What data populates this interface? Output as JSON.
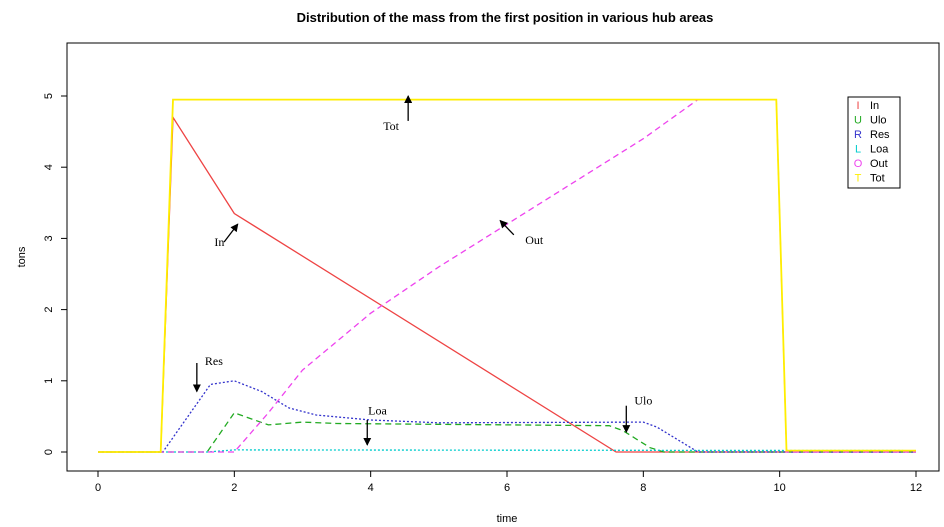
{
  "chart_data": {
    "type": "line",
    "title": "Distribution of the mass from the first position in various hub areas",
    "xlabel": "time",
    "ylabel": "tons",
    "xlim": [
      0,
      12
    ],
    "ylim": [
      0,
      5
    ],
    "x_ticks": [
      0,
      2,
      4,
      6,
      8,
      10,
      12
    ],
    "y_ticks": [
      0,
      1,
      2,
      3,
      4,
      5
    ],
    "grid": false,
    "legend": {
      "placement": "top-right"
    },
    "series": [
      {
        "name": "In",
        "symbol": "I",
        "color": "#ee4444",
        "dash": "solid",
        "points": [
          [
            0,
            0
          ],
          [
            0.92,
            0
          ],
          [
            1.1,
            4.7
          ],
          [
            2.0,
            3.35
          ],
          [
            7.6,
            0
          ],
          [
            12,
            0
          ]
        ]
      },
      {
        "name": "Ulo",
        "symbol": "U",
        "color": "#22aa22",
        "dash": "dashed",
        "points": [
          [
            0,
            0
          ],
          [
            1.6,
            0
          ],
          [
            2.0,
            0.55
          ],
          [
            2.5,
            0.38
          ],
          [
            3.0,
            0.42
          ],
          [
            3.5,
            0.4
          ],
          [
            7.5,
            0.37
          ],
          [
            7.7,
            0.3
          ],
          [
            8.1,
            0.06
          ],
          [
            8.3,
            0
          ],
          [
            12,
            0
          ]
        ]
      },
      {
        "name": "Res",
        "symbol": "R",
        "color": "#3333cc",
        "dash": "dotted",
        "points": [
          [
            0,
            0
          ],
          [
            0.95,
            0
          ],
          [
            1.65,
            0.95
          ],
          [
            2.0,
            1.0
          ],
          [
            2.4,
            0.85
          ],
          [
            2.8,
            0.62
          ],
          [
            3.2,
            0.52
          ],
          [
            4.0,
            0.45
          ],
          [
            5.0,
            0.41
          ],
          [
            8.0,
            0.42
          ],
          [
            8.2,
            0.35
          ],
          [
            8.8,
            0
          ],
          [
            12,
            0
          ]
        ]
      },
      {
        "name": "Loa",
        "symbol": "L",
        "color": "#00cccc",
        "dash": "dotted",
        "points": [
          [
            0,
            0
          ],
          [
            1.6,
            0
          ],
          [
            2.0,
            0.03
          ],
          [
            12,
            0.02
          ]
        ]
      },
      {
        "name": "Out",
        "symbol": "O",
        "color": "#ee44ee",
        "dash": "dashed",
        "points": [
          [
            0,
            0
          ],
          [
            2.0,
            0
          ],
          [
            2.5,
            0.55
          ],
          [
            3.0,
            1.15
          ],
          [
            4.0,
            1.95
          ],
          [
            5.0,
            2.6
          ],
          [
            6.0,
            3.2
          ],
          [
            7.0,
            3.8
          ],
          [
            8.0,
            4.4
          ],
          [
            8.8,
            4.95
          ],
          [
            9.95,
            4.95
          ],
          [
            10.1,
            0
          ],
          [
            12,
            0
          ]
        ]
      },
      {
        "name": "Tot",
        "symbol": "T",
        "color": "#ffee00",
        "dash": "solid",
        "points": [
          [
            0,
            0
          ],
          [
            0.92,
            0
          ],
          [
            1.1,
            4.95
          ],
          [
            9.95,
            4.95
          ],
          [
            10.1,
            0.02
          ],
          [
            12,
            0.02
          ]
        ]
      }
    ],
    "annotations": [
      {
        "label": "Tot",
        "arrow_from": [
          4.55,
          4.65
        ],
        "arrow_to": [
          4.55,
          5.0
        ],
        "label_at": [
          4.3,
          4.58
        ]
      },
      {
        "label": "In",
        "arrow_from": [
          1.85,
          2.95
        ],
        "arrow_to": [
          2.05,
          3.2
        ],
        "label_at": [
          1.78,
          2.95
        ]
      },
      {
        "label": "Out",
        "arrow_from": [
          6.1,
          3.05
        ],
        "arrow_to": [
          5.9,
          3.25
        ],
        "label_at": [
          6.4,
          2.98
        ]
      },
      {
        "label": "Res",
        "arrow_from": [
          1.45,
          1.25
        ],
        "arrow_to": [
          1.45,
          0.85
        ],
        "label_at": [
          1.7,
          1.28
        ]
      },
      {
        "label": "Loa",
        "arrow_from": [
          3.95,
          0.45
        ],
        "arrow_to": [
          3.95,
          0.1
        ],
        "label_at": [
          4.1,
          0.58
        ]
      },
      {
        "label": "Ulo",
        "arrow_from": [
          7.75,
          0.65
        ],
        "arrow_to": [
          7.75,
          0.28
        ],
        "label_at": [
          8.0,
          0.72
        ]
      }
    ]
  }
}
